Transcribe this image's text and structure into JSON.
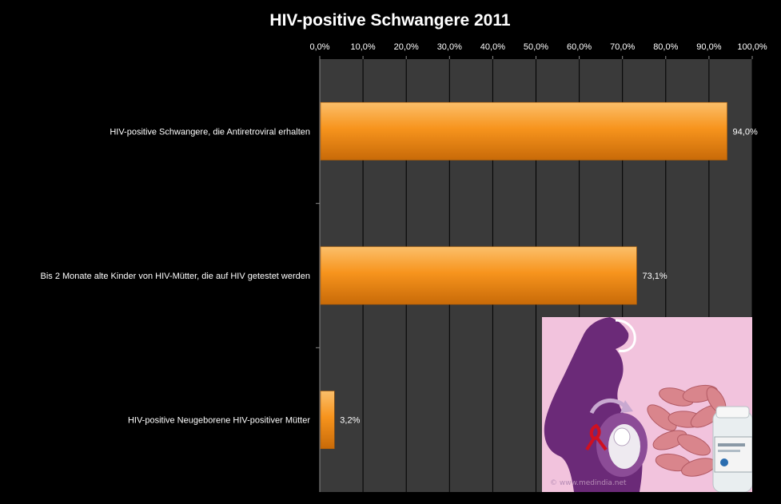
{
  "chart_data": {
    "type": "bar",
    "orientation": "horizontal",
    "title": "HIV-positive Schwangere 2011",
    "categories": [
      "HIV-positive Schwangere, die Antiretroviral  erhalten",
      "Bis 2 Monate alte Kinder von HIV-Mütter, die auf HIV getestet werden",
      "HIV-positive Neugeborene HIV-positiver Mütter"
    ],
    "values": [
      94.0,
      73.1,
      3.2
    ],
    "value_labels": [
      "94,0%",
      "73,1%",
      "3,2%"
    ],
    "xlim": [
      0,
      100
    ],
    "x_ticks": [
      0,
      10,
      20,
      30,
      40,
      50,
      60,
      70,
      80,
      90,
      100
    ],
    "x_tick_labels": [
      "0,0%",
      "10,0%",
      "20,0%",
      "30,0%",
      "40,0%",
      "50,0%",
      "60,0%",
      "70,0%",
      "80,0%",
      "90,0%",
      "100,0%"
    ],
    "axis_position": "top",
    "grid": true,
    "legend": "none",
    "colors": {
      "bar": "#f7941d",
      "bar_light": "#fbbf6a",
      "bar_dark": "#c86a08",
      "plot_bg": "#3a3a3a",
      "grid": "#000000",
      "background": "#000000",
      "text": "#ffffff"
    }
  },
  "image": {
    "credit": "© www.medindia.net",
    "colors": {
      "bg": "#f2c3dd",
      "silhouette": "#6b2a78",
      "pills": "#d9858c",
      "ribbon": "#d01020"
    }
  }
}
